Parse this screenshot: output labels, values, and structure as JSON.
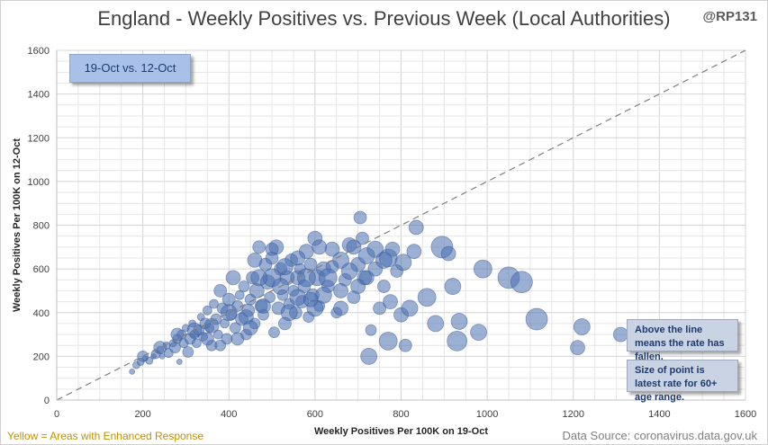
{
  "title": "England - Weekly Positives vs. Previous Week (Local Authorities)",
  "handle": "@RP131",
  "date_badge": "19-Oct vs. 12-Oct",
  "notes": {
    "line_meaning": "Above the line means the rate has fallen.",
    "point_size": "Size of point is latest rate for 60+ age range."
  },
  "footer": {
    "left": "Yellow = Areas with Enhanced Response",
    "right": "Data Source: coronavirus.data.gov.uk"
  },
  "colors": {
    "bubble_fill": "#4a6fb0",
    "bubble_stroke": "#2f4f8f",
    "diagonal": "#7f7f7f",
    "grid": "#e6e6e6"
  },
  "chart_data": {
    "type": "scatter",
    "title": "England - Weekly Positives vs. Previous Week (Local Authorities)",
    "xlabel": "Weekly Positives Per 100K on 19-Oct",
    "ylabel": "Weekly Positives Per 100K on 12-Oct",
    "xlim": [
      0,
      1600
    ],
    "ylim": [
      0,
      1600
    ],
    "x_ticks": [
      0,
      200,
      400,
      600,
      800,
      1000,
      1200,
      1400,
      1600
    ],
    "y_ticks": [
      0,
      200,
      400,
      600,
      800,
      1000,
      1200,
      1400,
      1600
    ],
    "grid": true,
    "reference_line": "y = x",
    "points": [
      [
        175,
        130,
        3
      ],
      [
        185,
        160,
        4
      ],
      [
        195,
        175,
        4
      ],
      [
        205,
        190,
        3
      ],
      [
        215,
        180,
        4
      ],
      [
        225,
        200,
        3
      ],
      [
        230,
        210,
        5
      ],
      [
        240,
        230,
        4
      ],
      [
        245,
        200,
        3
      ],
      [
        255,
        250,
        4
      ],
      [
        260,
        215,
        5
      ],
      [
        270,
        260,
        4
      ],
      [
        275,
        240,
        6
      ],
      [
        280,
        280,
        5
      ],
      [
        285,
        175,
        3
      ],
      [
        290,
        300,
        5
      ],
      [
        295,
        260,
        5
      ],
      [
        300,
        330,
        4
      ],
      [
        305,
        220,
        6
      ],
      [
        310,
        280,
        6
      ],
      [
        315,
        350,
        4
      ],
      [
        320,
        300,
        5
      ],
      [
        325,
        260,
        5
      ],
      [
        330,
        320,
        6
      ],
      [
        335,
        380,
        4
      ],
      [
        340,
        290,
        5
      ],
      [
        345,
        350,
        6
      ],
      [
        350,
        410,
        5
      ],
      [
        355,
        330,
        5
      ],
      [
        360,
        250,
        6
      ],
      [
        365,
        440,
        5
      ],
      [
        370,
        370,
        6
      ],
      [
        375,
        300,
        5
      ],
      [
        380,
        500,
        7
      ],
      [
        385,
        420,
        6
      ],
      [
        390,
        350,
        5
      ],
      [
        395,
        280,
        6
      ],
      [
        400,
        460,
        7
      ],
      [
        405,
        390,
        6
      ],
      [
        410,
        560,
        8
      ],
      [
        415,
        330,
        6
      ],
      [
        420,
        430,
        6
      ],
      [
        425,
        480,
        5
      ],
      [
        430,
        370,
        7
      ],
      [
        435,
        520,
        6
      ],
      [
        440,
        300,
        6
      ],
      [
        445,
        410,
        7
      ],
      [
        450,
        460,
        6
      ],
      [
        455,
        560,
        7
      ],
      [
        460,
        350,
        6
      ],
      [
        465,
        500,
        8
      ],
      [
        470,
        700,
        7
      ],
      [
        475,
        430,
        7
      ],
      [
        480,
        390,
        6
      ],
      [
        485,
        620,
        7
      ],
      [
        490,
        540,
        8
      ],
      [
        495,
        470,
        6
      ],
      [
        500,
        650,
        7
      ],
      [
        505,
        310,
        6
      ],
      [
        510,
        700,
        8
      ],
      [
        515,
        420,
        7
      ],
      [
        520,
        600,
        7
      ],
      [
        525,
        480,
        6
      ],
      [
        530,
        350,
        7
      ],
      [
        535,
        560,
        8
      ],
      [
        540,
        440,
        6
      ],
      [
        545,
        640,
        7
      ],
      [
        550,
        500,
        6
      ],
      [
        555,
        400,
        7
      ],
      [
        560,
        560,
        8
      ],
      [
        565,
        600,
        6
      ],
      [
        570,
        450,
        7
      ],
      [
        575,
        520,
        7
      ],
      [
        580,
        680,
        8
      ],
      [
        585,
        380,
        6
      ],
      [
        590,
        620,
        7
      ],
      [
        595,
        480,
        7
      ],
      [
        600,
        740,
        8
      ],
      [
        605,
        560,
        9
      ],
      [
        610,
        430,
        6
      ],
      [
        620,
        600,
        8
      ],
      [
        630,
        520,
        7
      ],
      [
        640,
        690,
        8
      ],
      [
        650,
        400,
        6
      ],
      [
        660,
        640,
        9
      ],
      [
        670,
        550,
        7
      ],
      [
        680,
        710,
        8
      ],
      [
        690,
        470,
        7
      ],
      [
        700,
        620,
        8
      ],
      [
        705,
        835,
        7
      ],
      [
        710,
        740,
        7
      ],
      [
        715,
        560,
        8
      ],
      [
        720,
        660,
        9
      ],
      [
        730,
        320,
        6
      ],
      [
        740,
        600,
        8
      ],
      [
        750,
        420,
        7
      ],
      [
        760,
        520,
        7
      ],
      [
        770,
        650,
        10
      ],
      [
        775,
        450,
        8
      ],
      [
        780,
        690,
        8
      ],
      [
        790,
        590,
        7
      ],
      [
        800,
        390,
        8
      ],
      [
        805,
        630,
        9
      ],
      [
        810,
        250,
        7
      ],
      [
        820,
        420,
        9
      ],
      [
        830,
        680,
        8
      ],
      [
        835,
        790,
        8
      ],
      [
        860,
        470,
        10
      ],
      [
        880,
        350,
        9
      ],
      [
        895,
        700,
        12
      ],
      [
        910,
        670,
        8
      ],
      [
        920,
        520,
        9
      ],
      [
        935,
        360,
        9
      ],
      [
        930,
        270,
        11
      ],
      [
        980,
        310,
        9
      ],
      [
        990,
        600,
        10
      ],
      [
        1050,
        560,
        12
      ],
      [
        1080,
        540,
        12
      ],
      [
        1115,
        370,
        12
      ],
      [
        1210,
        240,
        8
      ],
      [
        1220,
        335,
        9
      ],
      [
        1310,
        300,
        8
      ],
      [
        770,
        270,
        10
      ],
      [
        725,
        200,
        9
      ],
      [
        760,
        640,
        9
      ],
      [
        460,
        640,
        8
      ],
      [
        500,
        690,
        7
      ],
      [
        610,
        700,
        8
      ],
      [
        640,
        610,
        7
      ],
      [
        560,
        470,
        9
      ],
      [
        520,
        520,
        9
      ],
      [
        480,
        430,
        8
      ],
      [
        440,
        380,
        8
      ],
      [
        400,
        400,
        9
      ],
      [
        360,
        340,
        8
      ],
      [
        320,
        320,
        8
      ],
      [
        280,
        300,
        7
      ],
      [
        240,
        240,
        7
      ],
      [
        200,
        200,
        6
      ],
      [
        580,
        560,
        10
      ],
      [
        540,
        400,
        9
      ],
      [
        620,
        480,
        9
      ],
      [
        660,
        500,
        8
      ],
      [
        700,
        520,
        8
      ],
      [
        450,
        330,
        8
      ],
      [
        420,
        280,
        7
      ],
      [
        380,
        250,
        6
      ],
      [
        350,
        280,
        7
      ],
      [
        600,
        420,
        9
      ],
      [
        660,
        420,
        8
      ],
      [
        500,
        560,
        10
      ],
      [
        470,
        560,
        9
      ],
      [
        530,
        610,
        9
      ],
      [
        560,
        650,
        8
      ],
      [
        590,
        460,
        8
      ],
      [
        630,
        560,
        10
      ],
      [
        680,
        590,
        9
      ],
      [
        720,
        560,
        8
      ],
      [
        740,
        690,
        9
      ],
      [
        690,
        700,
        8
      ]
    ]
  }
}
